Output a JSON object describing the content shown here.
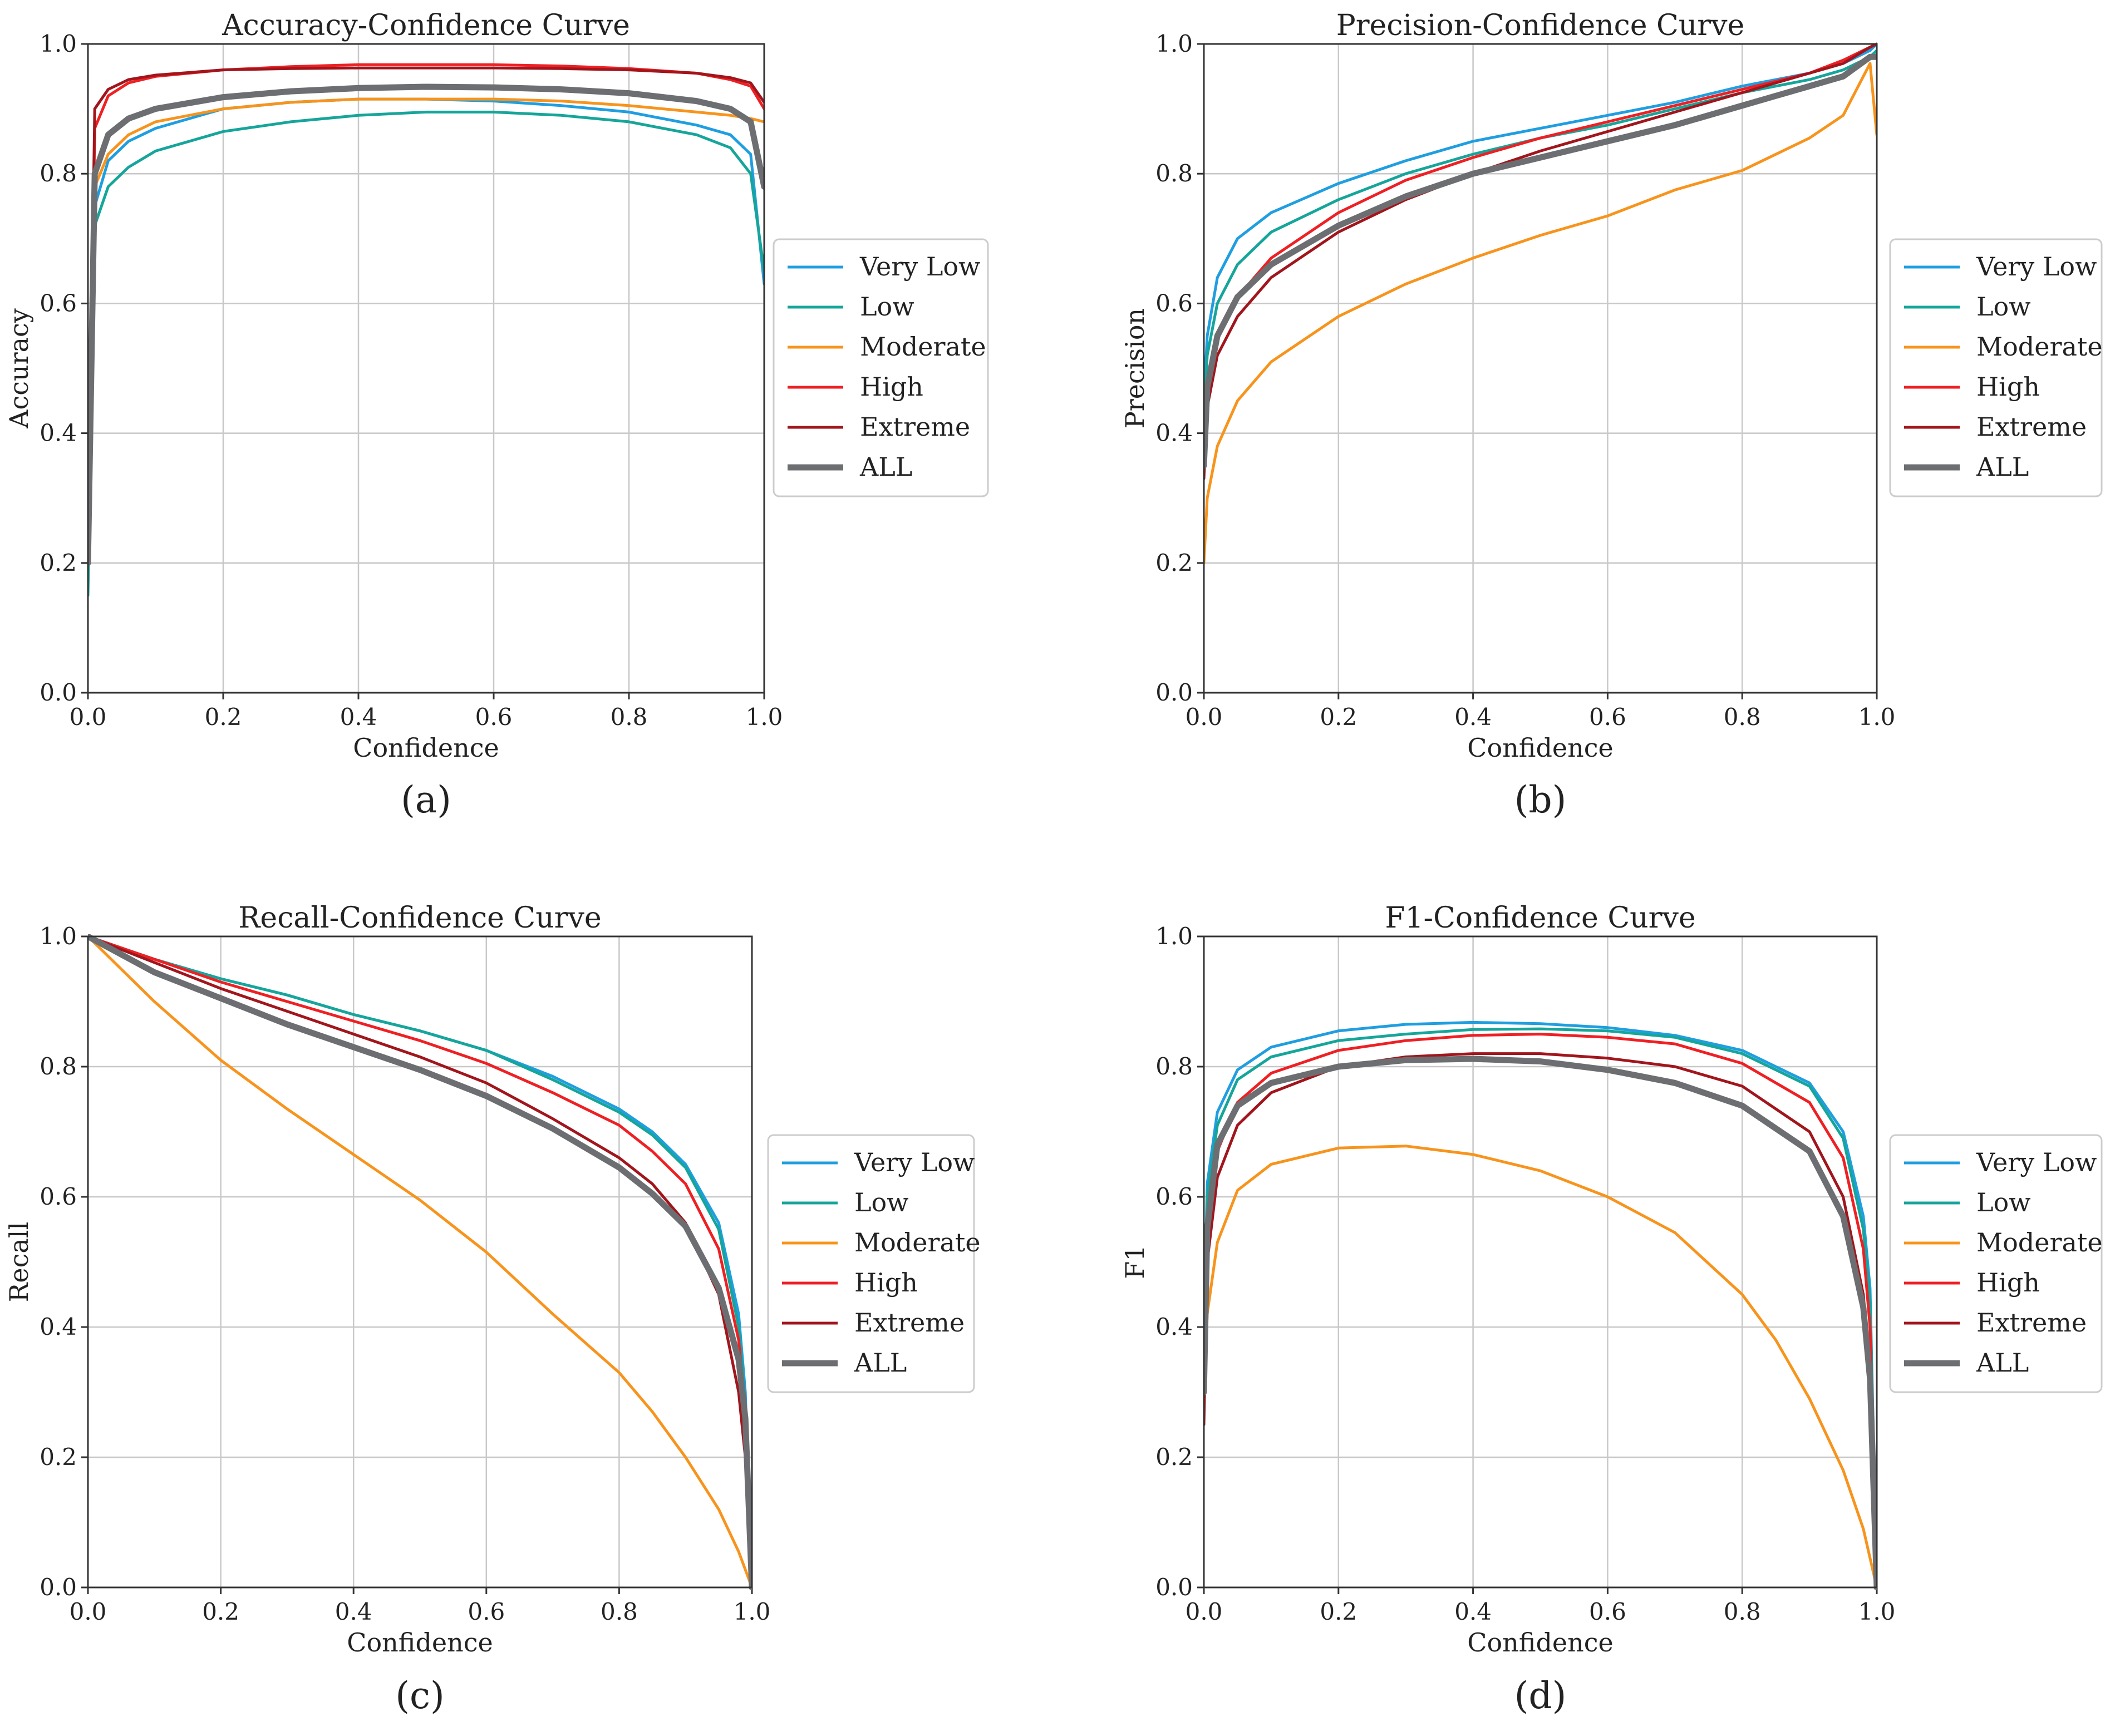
{
  "figure": {
    "panels": [
      {
        "id": "a",
        "caption": "(a)"
      },
      {
        "id": "b",
        "caption": "(b)"
      },
      {
        "id": "c",
        "caption": "(c)"
      },
      {
        "id": "d",
        "caption": "(d)"
      }
    ]
  },
  "series_styles": [
    {
      "name": "Very Low",
      "color": "#1f9ee0"
    },
    {
      "name": "Low",
      "color": "#16a59a"
    },
    {
      "name": "Moderate",
      "color": "#f7941d"
    },
    {
      "name": "High",
      "color": "#ee2024"
    },
    {
      "name": "Extreme",
      "color": "#a1151c"
    },
    {
      "name": "ALL",
      "color": "#6d6e71"
    }
  ],
  "chart_data": [
    {
      "type": "line",
      "title": "Accuracy-Confidence Curve",
      "xlabel": "Confidence",
      "ylabel": "Accuracy",
      "xlim": [
        0,
        1
      ],
      "ylim": [
        0,
        1
      ],
      "xticks": [
        "0.0",
        "0.2",
        "0.4",
        "0.6",
        "0.8",
        "1.0"
      ],
      "yticks": [
        "0.0",
        "0.2",
        "0.4",
        "0.6",
        "0.8",
        "1.0"
      ],
      "grid": true,
      "legend": "outside-right",
      "series": [
        {
          "name": "Very Low",
          "x": [
            0,
            0.01,
            0.03,
            0.06,
            0.1,
            0.2,
            0.3,
            0.4,
            0.5,
            0.6,
            0.7,
            0.8,
            0.9,
            0.95,
            0.98,
            1.0
          ],
          "y": [
            0.2,
            0.75,
            0.82,
            0.85,
            0.87,
            0.9,
            0.91,
            0.915,
            0.915,
            0.912,
            0.905,
            0.895,
            0.875,
            0.86,
            0.83,
            0.63
          ]
        },
        {
          "name": "Low",
          "x": [
            0,
            0.01,
            0.03,
            0.06,
            0.1,
            0.2,
            0.3,
            0.4,
            0.5,
            0.6,
            0.7,
            0.8,
            0.9,
            0.95,
            0.98,
            1.0
          ],
          "y": [
            0.15,
            0.72,
            0.78,
            0.81,
            0.835,
            0.865,
            0.88,
            0.89,
            0.895,
            0.895,
            0.89,
            0.88,
            0.86,
            0.84,
            0.8,
            0.65
          ]
        },
        {
          "name": "Moderate",
          "x": [
            0,
            0.01,
            0.03,
            0.06,
            0.1,
            0.2,
            0.3,
            0.4,
            0.5,
            0.6,
            0.7,
            0.8,
            0.9,
            0.95,
            0.98,
            1.0
          ],
          "y": [
            0.2,
            0.78,
            0.83,
            0.86,
            0.88,
            0.9,
            0.91,
            0.915,
            0.915,
            0.915,
            0.912,
            0.905,
            0.895,
            0.89,
            0.885,
            0.88
          ]
        },
        {
          "name": "High",
          "x": [
            0,
            0.01,
            0.03,
            0.06,
            0.1,
            0.2,
            0.3,
            0.4,
            0.5,
            0.6,
            0.7,
            0.8,
            0.9,
            0.95,
            0.98,
            1.0
          ],
          "y": [
            0.2,
            0.87,
            0.92,
            0.94,
            0.95,
            0.96,
            0.965,
            0.968,
            0.968,
            0.968,
            0.966,
            0.962,
            0.955,
            0.945,
            0.935,
            0.9
          ]
        },
        {
          "name": "Extreme",
          "x": [
            0,
            0.01,
            0.03,
            0.06,
            0.1,
            0.2,
            0.3,
            0.4,
            0.5,
            0.6,
            0.7,
            0.8,
            0.9,
            0.95,
            0.98,
            1.0
          ],
          "y": [
            0.2,
            0.9,
            0.93,
            0.945,
            0.952,
            0.96,
            0.962,
            0.963,
            0.963,
            0.963,
            0.962,
            0.96,
            0.955,
            0.948,
            0.94,
            0.91
          ]
        },
        {
          "name": "ALL",
          "x": [
            0,
            0.01,
            0.03,
            0.06,
            0.1,
            0.2,
            0.3,
            0.4,
            0.5,
            0.6,
            0.7,
            0.8,
            0.9,
            0.95,
            0.98,
            1.0
          ],
          "y": [
            0.2,
            0.8,
            0.86,
            0.885,
            0.9,
            0.918,
            0.927,
            0.932,
            0.934,
            0.933,
            0.93,
            0.924,
            0.912,
            0.9,
            0.88,
            0.78
          ]
        }
      ]
    },
    {
      "type": "line",
      "title": "Precision-Confidence Curve",
      "xlabel": "Confidence",
      "ylabel": "Precision",
      "xlim": [
        0,
        1
      ],
      "ylim": [
        0,
        1
      ],
      "xticks": [
        "0.0",
        "0.2",
        "0.4",
        "0.6",
        "0.8",
        "1.0"
      ],
      "yticks": [
        "0.0",
        "0.2",
        "0.4",
        "0.6",
        "0.8",
        "1.0"
      ],
      "grid": true,
      "legend": "outside-right",
      "series": [
        {
          "name": "Very Low",
          "x": [
            0,
            0.005,
            0.02,
            0.05,
            0.1,
            0.2,
            0.3,
            0.4,
            0.5,
            0.6,
            0.7,
            0.8,
            0.9,
            0.95,
            0.99,
            1.0
          ],
          "y": [
            0.45,
            0.55,
            0.64,
            0.7,
            0.74,
            0.785,
            0.82,
            0.85,
            0.87,
            0.89,
            0.91,
            0.935,
            0.955,
            0.97,
            0.99,
            1.0
          ]
        },
        {
          "name": "Low",
          "x": [
            0,
            0.005,
            0.02,
            0.05,
            0.1,
            0.2,
            0.3,
            0.4,
            0.5,
            0.6,
            0.7,
            0.8,
            0.9,
            0.95,
            0.99,
            1.0
          ],
          "y": [
            0.42,
            0.52,
            0.6,
            0.66,
            0.71,
            0.76,
            0.8,
            0.83,
            0.855,
            0.875,
            0.9,
            0.925,
            0.945,
            0.96,
            0.98,
            0.99
          ]
        },
        {
          "name": "Moderate",
          "x": [
            0,
            0.005,
            0.02,
            0.05,
            0.1,
            0.2,
            0.3,
            0.4,
            0.5,
            0.6,
            0.7,
            0.8,
            0.9,
            0.95,
            0.97,
            0.98,
            0.99,
            1.0
          ],
          "y": [
            0.2,
            0.3,
            0.38,
            0.45,
            0.51,
            0.58,
            0.63,
            0.67,
            0.705,
            0.735,
            0.775,
            0.805,
            0.855,
            0.89,
            0.93,
            0.95,
            0.97,
            0.86
          ]
        },
        {
          "name": "High",
          "x": [
            0,
            0.005,
            0.02,
            0.05,
            0.1,
            0.2,
            0.3,
            0.4,
            0.5,
            0.6,
            0.7,
            0.8,
            0.9,
            0.95,
            0.99,
            1.0
          ],
          "y": [
            0.35,
            0.47,
            0.55,
            0.61,
            0.67,
            0.74,
            0.79,
            0.825,
            0.855,
            0.88,
            0.905,
            0.93,
            0.955,
            0.975,
            0.995,
            1.0
          ]
        },
        {
          "name": "Extreme",
          "x": [
            0,
            0.005,
            0.02,
            0.05,
            0.1,
            0.2,
            0.3,
            0.4,
            0.5,
            0.6,
            0.7,
            0.8,
            0.9,
            0.95,
            0.99,
            1.0
          ],
          "y": [
            0.33,
            0.44,
            0.52,
            0.58,
            0.64,
            0.71,
            0.76,
            0.8,
            0.835,
            0.865,
            0.895,
            0.925,
            0.955,
            0.97,
            0.995,
            1.0
          ]
        },
        {
          "name": "ALL",
          "x": [
            0,
            0.005,
            0.02,
            0.05,
            0.1,
            0.2,
            0.3,
            0.4,
            0.5,
            0.6,
            0.7,
            0.8,
            0.9,
            0.95,
            0.99,
            1.0
          ],
          "y": [
            0.35,
            0.47,
            0.55,
            0.61,
            0.66,
            0.72,
            0.765,
            0.8,
            0.825,
            0.85,
            0.875,
            0.905,
            0.935,
            0.95,
            0.98,
            0.98
          ]
        }
      ]
    },
    {
      "type": "line",
      "title": "Recall-Confidence Curve",
      "xlabel": "Confidence",
      "ylabel": "Recall",
      "xlim": [
        0,
        1
      ],
      "ylim": [
        0,
        1
      ],
      "xticks": [
        "0.0",
        "0.2",
        "0.4",
        "0.6",
        "0.8",
        "1.0"
      ],
      "yticks": [
        "0.0",
        "0.2",
        "0.4",
        "0.6",
        "0.8",
        "1.0"
      ],
      "grid": true,
      "legend": "outside-right",
      "series": [
        {
          "name": "Very Low",
          "x": [
            0,
            0.1,
            0.2,
            0.3,
            0.4,
            0.5,
            0.6,
            0.7,
            0.8,
            0.85,
            0.9,
            0.95,
            0.98,
            0.99,
            1.0
          ],
          "y": [
            1.0,
            0.965,
            0.935,
            0.91,
            0.88,
            0.855,
            0.825,
            0.785,
            0.735,
            0.7,
            0.65,
            0.56,
            0.42,
            0.3,
            0.0
          ]
        },
        {
          "name": "Low",
          "x": [
            0,
            0.1,
            0.2,
            0.3,
            0.4,
            0.5,
            0.6,
            0.7,
            0.8,
            0.85,
            0.9,
            0.95,
            0.98,
            0.99,
            1.0
          ],
          "y": [
            1.0,
            0.965,
            0.935,
            0.91,
            0.88,
            0.855,
            0.825,
            0.78,
            0.73,
            0.695,
            0.645,
            0.55,
            0.4,
            0.28,
            0.0
          ]
        },
        {
          "name": "Moderate",
          "x": [
            0,
            0.1,
            0.2,
            0.3,
            0.4,
            0.5,
            0.6,
            0.7,
            0.8,
            0.85,
            0.9,
            0.95,
            0.98,
            1.0
          ],
          "y": [
            1.0,
            0.9,
            0.81,
            0.735,
            0.665,
            0.595,
            0.515,
            0.42,
            0.33,
            0.27,
            0.2,
            0.12,
            0.055,
            0.0
          ]
        },
        {
          "name": "High",
          "x": [
            0,
            0.1,
            0.2,
            0.3,
            0.4,
            0.5,
            0.6,
            0.7,
            0.8,
            0.85,
            0.9,
            0.95,
            0.98,
            0.99,
            1.0
          ],
          "y": [
            1.0,
            0.965,
            0.93,
            0.9,
            0.87,
            0.84,
            0.805,
            0.76,
            0.71,
            0.67,
            0.62,
            0.52,
            0.38,
            0.27,
            0.0
          ]
        },
        {
          "name": "Extreme",
          "x": [
            0,
            0.1,
            0.2,
            0.3,
            0.4,
            0.5,
            0.6,
            0.7,
            0.8,
            0.85,
            0.9,
            0.95,
            0.98,
            0.99,
            1.0
          ],
          "y": [
            1.0,
            0.96,
            0.92,
            0.885,
            0.85,
            0.815,
            0.775,
            0.72,
            0.66,
            0.62,
            0.56,
            0.45,
            0.3,
            0.2,
            0.0
          ]
        },
        {
          "name": "ALL",
          "x": [
            0,
            0.1,
            0.2,
            0.3,
            0.4,
            0.5,
            0.6,
            0.7,
            0.8,
            0.85,
            0.9,
            0.95,
            0.98,
            0.99,
            1.0
          ],
          "y": [
            1.0,
            0.945,
            0.905,
            0.865,
            0.83,
            0.795,
            0.755,
            0.705,
            0.645,
            0.605,
            0.555,
            0.46,
            0.35,
            0.26,
            0.0
          ]
        }
      ]
    },
    {
      "type": "line",
      "title": "F1-Confidence Curve",
      "xlabel": "Confidence",
      "ylabel": "F1",
      "xlim": [
        0,
        1
      ],
      "ylim": [
        0,
        1
      ],
      "xticks": [
        "0.0",
        "0.2",
        "0.4",
        "0.6",
        "0.8",
        "1.0"
      ],
      "yticks": [
        "0.0",
        "0.2",
        "0.4",
        "0.6",
        "0.8",
        "1.0"
      ],
      "grid": true,
      "legend": "outside-right",
      "series": [
        {
          "name": "Very Low",
          "x": [
            0,
            0.005,
            0.02,
            0.05,
            0.1,
            0.2,
            0.3,
            0.4,
            0.5,
            0.6,
            0.7,
            0.8,
            0.9,
            0.95,
            0.98,
            0.99,
            1.0
          ],
          "y": [
            0.4,
            0.62,
            0.73,
            0.795,
            0.83,
            0.855,
            0.865,
            0.868,
            0.866,
            0.86,
            0.848,
            0.825,
            0.775,
            0.7,
            0.57,
            0.46,
            0.0
          ]
        },
        {
          "name": "Low",
          "x": [
            0,
            0.005,
            0.02,
            0.05,
            0.1,
            0.2,
            0.3,
            0.4,
            0.5,
            0.6,
            0.7,
            0.8,
            0.9,
            0.95,
            0.98,
            0.99,
            1.0
          ],
          "y": [
            0.4,
            0.6,
            0.71,
            0.78,
            0.815,
            0.84,
            0.85,
            0.857,
            0.858,
            0.855,
            0.845,
            0.82,
            0.77,
            0.69,
            0.55,
            0.44,
            0.0
          ]
        },
        {
          "name": "Moderate",
          "x": [
            0,
            0.005,
            0.02,
            0.05,
            0.1,
            0.2,
            0.3,
            0.4,
            0.5,
            0.6,
            0.7,
            0.8,
            0.85,
            0.9,
            0.95,
            0.98,
            1.0
          ],
          "y": [
            0.3,
            0.42,
            0.53,
            0.61,
            0.65,
            0.675,
            0.678,
            0.665,
            0.64,
            0.6,
            0.545,
            0.45,
            0.38,
            0.29,
            0.18,
            0.09,
            0.0
          ]
        },
        {
          "name": "High",
          "x": [
            0,
            0.005,
            0.02,
            0.05,
            0.1,
            0.2,
            0.3,
            0.4,
            0.5,
            0.6,
            0.7,
            0.8,
            0.9,
            0.95,
            0.98,
            0.99,
            1.0
          ],
          "y": [
            0.3,
            0.55,
            0.67,
            0.745,
            0.79,
            0.825,
            0.84,
            0.848,
            0.85,
            0.845,
            0.835,
            0.805,
            0.745,
            0.66,
            0.52,
            0.4,
            0.0
          ]
        },
        {
          "name": "Extreme",
          "x": [
            0,
            0.005,
            0.02,
            0.05,
            0.1,
            0.2,
            0.3,
            0.4,
            0.5,
            0.6,
            0.7,
            0.8,
            0.9,
            0.95,
            0.98,
            0.99,
            1.0
          ],
          "y": [
            0.25,
            0.5,
            0.63,
            0.71,
            0.76,
            0.8,
            0.815,
            0.82,
            0.82,
            0.813,
            0.8,
            0.77,
            0.7,
            0.6,
            0.45,
            0.33,
            0.0
          ]
        },
        {
          "name": "ALL",
          "x": [
            0,
            0.005,
            0.02,
            0.05,
            0.1,
            0.2,
            0.3,
            0.4,
            0.5,
            0.6,
            0.7,
            0.8,
            0.9,
            0.95,
            0.98,
            0.99,
            1.0
          ],
          "y": [
            0.3,
            0.55,
            0.68,
            0.74,
            0.775,
            0.8,
            0.81,
            0.812,
            0.808,
            0.795,
            0.775,
            0.74,
            0.67,
            0.57,
            0.43,
            0.32,
            0.0
          ]
        }
      ]
    }
  ]
}
